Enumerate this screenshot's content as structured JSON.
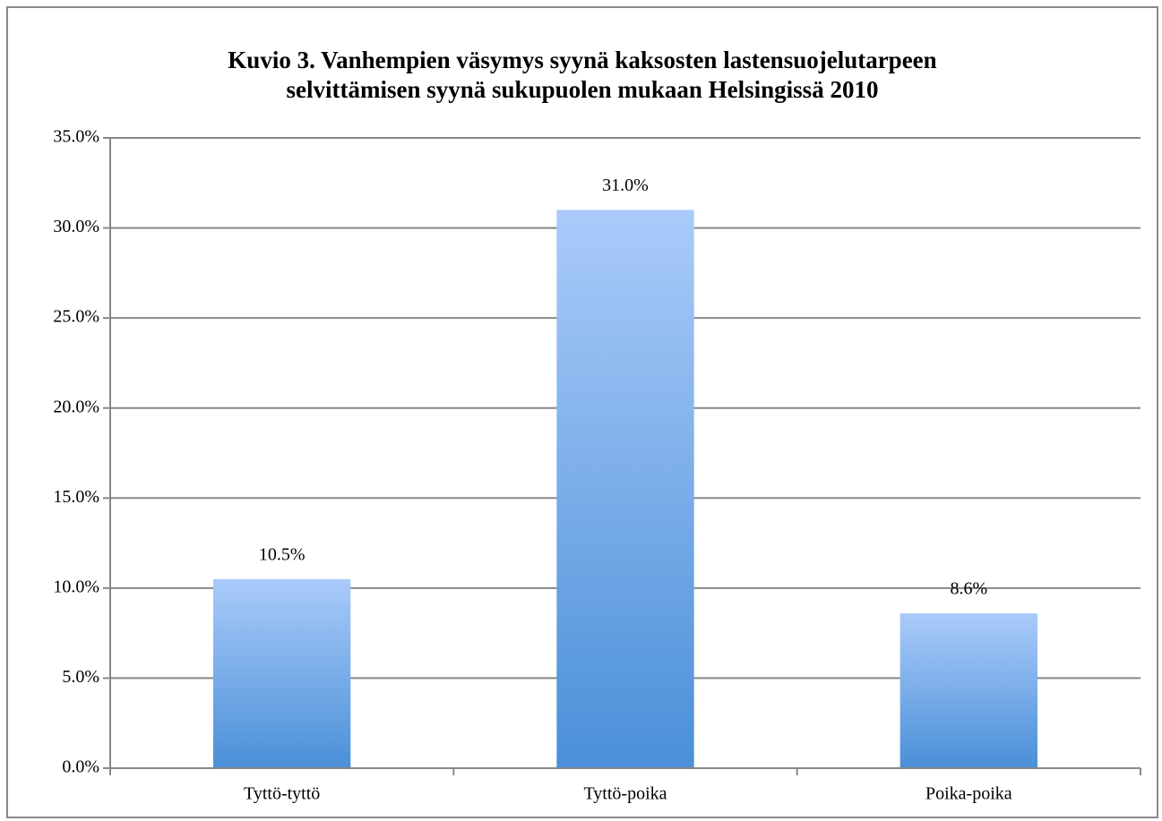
{
  "chart_data": {
    "type": "bar",
    "title": [
      "Kuvio 3. Vanhempien väsymys syynä kaksosten lastensuojelutarpeen",
      "selvittämisen syynä sukupuolen mukaan Helsingissä 2010"
    ],
    "categories": [
      "Tyttö-tyttö",
      "Tyttö-poika",
      "Poika-poika"
    ],
    "values": [
      10.5,
      31.0,
      8.6
    ],
    "value_labels": [
      "10.5%",
      "31.0%",
      "8.6%"
    ],
    "gradient": [
      "#aacbfa",
      "#4a8fd8"
    ],
    "ylim": [
      0,
      35
    ],
    "yticks": [
      {
        "value": 0,
        "label": "0.0%"
      },
      {
        "value": 5,
        "label": "5.0%"
      },
      {
        "value": 10,
        "label": "10.0%"
      },
      {
        "value": 15,
        "label": "15.0%"
      },
      {
        "value": 20,
        "label": "20.0%"
      },
      {
        "value": 25,
        "label": "25.0%"
      },
      {
        "value": 30,
        "label": "30.0%"
      },
      {
        "value": 35,
        "label": "35.0%"
      }
    ],
    "grid": true
  }
}
